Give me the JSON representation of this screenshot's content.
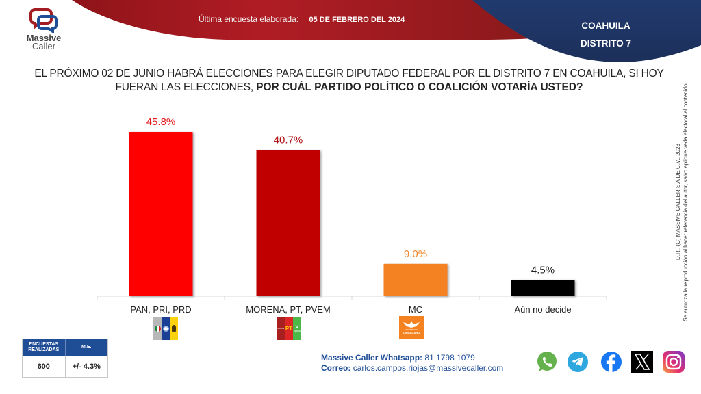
{
  "brand": {
    "name_line1": "Massive",
    "name_line2": "Caller",
    "colors": {
      "red": "#b01c24",
      "dark_red": "#6e1516",
      "navy": "#1f3360",
      "blue_text": "#1f4e97"
    }
  },
  "header": {
    "last_survey_label": "Última encuesta elaborada:",
    "last_survey_date": "05 DE FEBRERO DEL 2024",
    "state": "COAHUILA",
    "district": "DISTRITO 7"
  },
  "question": {
    "plain": "EL PRÓXIMO 02 DE JUNIO HABRÁ ELECCIONES PARA ELEGIR DIPUTADO FEDERAL POR EL DISTRITO 7 EN COAHUILA, SI HOY FUERAN LAS ELECCIONES, ",
    "bold": "POR CUÁL PARTIDO POLÍTICO O COALICIÓN  VOTARÍA USTED?"
  },
  "copyright": {
    "line1": "D.R., (C) MASSIVE CALLER S.A DE C.V., 2023",
    "line2": "Se autoriza la reproducción al hacer referencia del autor, salvo aplique veda electoral al contenido."
  },
  "chart_data": {
    "type": "bar",
    "title": "",
    "xlabel": "",
    "ylabel": "",
    "categories": [
      "PAN, PRI, PRD",
      "MORENA, PT, PVEM",
      "MC",
      "Aún no decide"
    ],
    "values": [
      45.8,
      40.7,
      9.0,
      4.5
    ],
    "value_labels": [
      "45.8%",
      "40.7%",
      "9.0%",
      "4.5%"
    ],
    "bar_colors": [
      "#ff0000",
      "#c00000",
      "#f58220",
      "#000000"
    ],
    "label_colors": [
      "#e31b1b",
      "#b01010",
      "#f0862a",
      "#222222"
    ],
    "ylim": [
      0,
      50
    ],
    "grid": false,
    "legend": "none",
    "category_logos": [
      "pan-pri-prd-logo",
      "morena-pt-pvem-logo",
      "movimiento-ciudadano-logo",
      ""
    ]
  },
  "party_logos": {
    "mc_text_1": "MOVIMIENTO",
    "mc_text_2": "CIUDADANO",
    "pt_text": "PT",
    "morena_text": "morena",
    "verde_text": "VERDE"
  },
  "stats": {
    "surveys_header": "ENCUESTAS REALIZADAS",
    "me_header": "M.E.",
    "surveys_value": "600",
    "me_value": "+/- 4.3%"
  },
  "contact": {
    "whatsapp_label": "Massive Caller Whatsapp:",
    "whatsapp_value": "81 1798 1079",
    "email_label": "Correo:",
    "email_value": "carlos.campos.riojas@massivecaller.com"
  },
  "social": [
    "whatsapp-icon",
    "telegram-icon",
    "facebook-icon",
    "x-icon",
    "instagram-icon"
  ]
}
